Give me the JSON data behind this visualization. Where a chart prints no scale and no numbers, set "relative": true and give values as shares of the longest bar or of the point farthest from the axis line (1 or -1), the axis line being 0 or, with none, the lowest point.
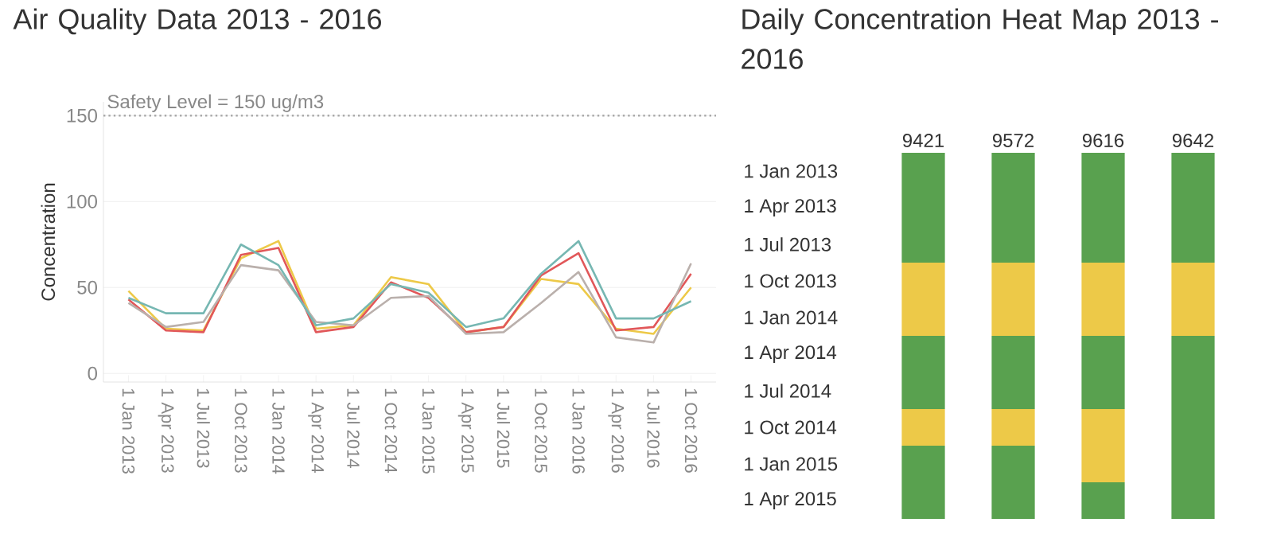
{
  "chart_data": [
    {
      "type": "line",
      "title": "Air Quality Data 2013 - 2016",
      "ylabel": "Concentration",
      "x": [
        "2013-01",
        "2013-04",
        "2013-07",
        "2013-10",
        "2014-01",
        "2014-04",
        "2014-07",
        "2014-10",
        "2015-01",
        "2015-04",
        "2015-07",
        "2015-10",
        "2016-01",
        "2016-04",
        "2016-07",
        "2016-10"
      ],
      "series": [
        {
          "color": "#edc948",
          "values": [
            48,
            26,
            25,
            67,
            77,
            26,
            28,
            56,
            52,
            24,
            27,
            55,
            52,
            26,
            23,
            50
          ]
        },
        {
          "color": "#e15759",
          "values": [
            43,
            25,
            24,
            69,
            73,
            24,
            27,
            53,
            44,
            24,
            27,
            57,
            70,
            25,
            27,
            58
          ]
        },
        {
          "color": "#bab0ac",
          "values": [
            41,
            27,
            30,
            63,
            60,
            30,
            28,
            44,
            45,
            23,
            24,
            41,
            59,
            21,
            18,
            64
          ]
        },
        {
          "color": "#76b7b2",
          "values": [
            44,
            35,
            35,
            75,
            63,
            28,
            32,
            52,
            47,
            27,
            32,
            58,
            77,
            32,
            32,
            42
          ]
        }
      ],
      "xlim": [
        "2012-11",
        "2016-12"
      ],
      "xticks": [
        {
          "value": "2013-01",
          "label": "1 Jan 2013"
        },
        {
          "value": "2013-04",
          "label": "1 Apr 2013"
        },
        {
          "value": "2013-07",
          "label": "1 Jul 2013"
        },
        {
          "value": "2013-10",
          "label": "1 Oct 2013"
        },
        {
          "value": "2014-01",
          "label": "1 Jan 2014"
        },
        {
          "value": "2014-04",
          "label": "1 Apr 2014"
        },
        {
          "value": "2014-07",
          "label": "1 Jul 2014"
        },
        {
          "value": "2014-10",
          "label": "1 Oct 2014"
        },
        {
          "value": "2015-01",
          "label": "1 Jan 2015"
        },
        {
          "value": "2015-04",
          "label": "1 Apr 2015"
        },
        {
          "value": "2015-07",
          "label": "1 Jul 2015"
        },
        {
          "value": "2015-10",
          "label": "1 Oct 2015"
        },
        {
          "value": "2016-01",
          "label": "1 Jan 2016"
        },
        {
          "value": "2016-04",
          "label": "1 Apr 2016"
        },
        {
          "value": "2016-07",
          "label": "1 Jul 2016"
        },
        {
          "value": "2016-10",
          "label": "1 Oct 2016"
        }
      ],
      "ylim": [
        -5,
        158
      ],
      "yticks": [
        0,
        50,
        100,
        150
      ],
      "grid": "y",
      "ref_lines": [
        {
          "axis": "y",
          "value": 150,
          "label": "Safety Level = 150 ug/m3",
          "line_style": "dotted",
          "color": "#aaaaaa"
        }
      ]
    },
    {
      "type": "bar",
      "stacked": true,
      "title": "Daily Concentration Heat Map 2013 - 2016",
      "categories": [
        "9421",
        "9572",
        "9616",
        "9642"
      ],
      "series": [
        {
          "color": "#59a14f",
          "values": [
            0.3,
            0.3,
            0.3,
            0.3
          ]
        },
        {
          "color": "#edc948",
          "values": [
            0.2,
            0.2,
            0.2,
            0.2
          ]
        },
        {
          "color": "#59a14f",
          "values": [
            0.2,
            0.2,
            0.2,
            0.5
          ]
        },
        {
          "color": "#edc948",
          "values": [
            0.1,
            0.1,
            0.2,
            0
          ]
        },
        {
          "color": "#59a14f",
          "values": [
            0.2,
            0.2,
            0.1,
            0
          ]
        }
      ],
      "relative": true,
      "annotations": [
        "1 Jan 2013",
        "1 Apr 2013",
        "1 Jul 2013",
        "1 Oct 2013",
        "1 Jan 2014",
        "1 Apr 2014",
        "1 Jul 2014",
        "1 Oct 2014",
        "1 Jan 2015",
        "1 Apr 2015"
      ]
    }
  ]
}
